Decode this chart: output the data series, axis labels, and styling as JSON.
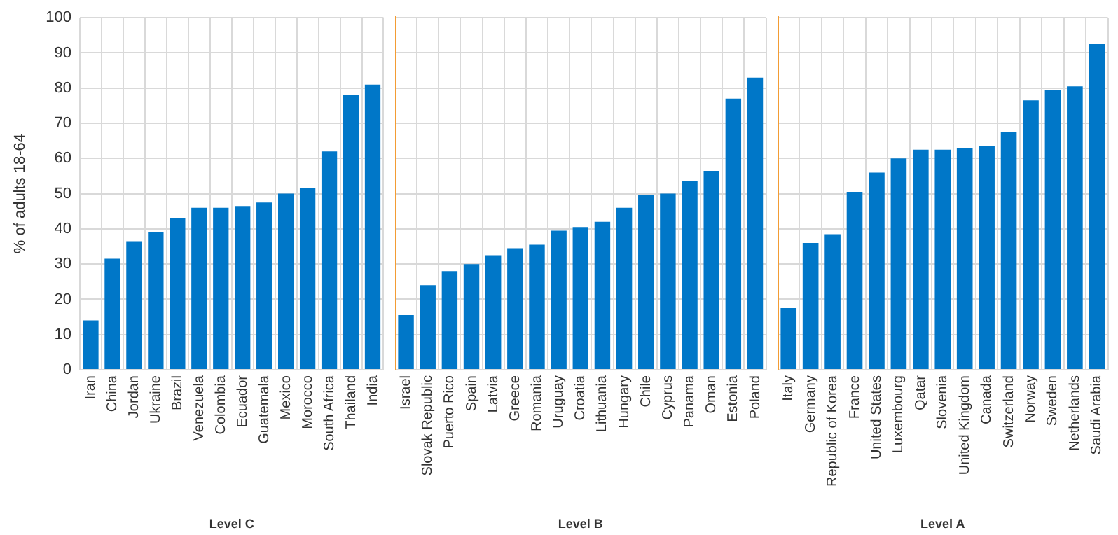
{
  "chart_data": [
    {
      "type": "bar",
      "xlabel": "Level C",
      "ylabel": "% of adults 18-64",
      "color": "#0077c8",
      "grid": true,
      "ylim": [
        0,
        100
      ],
      "yticks": [
        0,
        10,
        20,
        30,
        40,
        50,
        60,
        70,
        80,
        90,
        100
      ],
      "categories": [
        "Iran",
        "China",
        "Jordan",
        "Ukraine",
        "Brazil",
        "Venezuela",
        "Colombia",
        "Ecuador",
        "Guatemala",
        "Mexico",
        "Morocco",
        "South Africa",
        "Thailand",
        "India"
      ],
      "values": [
        14,
        31.5,
        36.5,
        39,
        43,
        46,
        46,
        46.5,
        47.5,
        50,
        51.5,
        62,
        78,
        81
      ]
    },
    {
      "type": "bar",
      "xlabel": "Level B",
      "color": "#0077c8",
      "grid": true,
      "ylim": [
        0,
        100
      ],
      "yticks": [
        0,
        10,
        20,
        30,
        40,
        50,
        60,
        70,
        80,
        90,
        100
      ],
      "tick_labels": "x",
      "categories": [
        "Israel",
        "Slovak Republic",
        "Puerto Rico",
        "Spain",
        "Latvia",
        "Greece",
        "Romania",
        "Uruguay",
        "Croatia",
        "Lithuania",
        "Hungary",
        "Chile",
        "Cyprus",
        "Panama",
        "Oman",
        "Estonia",
        "Poland"
      ],
      "values": [
        15.5,
        24,
        28,
        30,
        32.5,
        34.5,
        35.5,
        39.5,
        40.5,
        42,
        46,
        49.5,
        50,
        53.5,
        56.5,
        77,
        83
      ]
    },
    {
      "type": "bar",
      "xlabel": "Level A",
      "color": "#0077c8",
      "grid": true,
      "ylim": [
        0,
        100
      ],
      "yticks": [
        0,
        10,
        20,
        30,
        40,
        50,
        60,
        70,
        80,
        90,
        100
      ],
      "tick_labels": "x",
      "categories": [
        "Italy",
        "Germany",
        "Republic of Korea",
        "France",
        "United States",
        "Luxembourg",
        "Qatar",
        "Slovenia",
        "United Kingdom",
        "Canada",
        "Switzerland",
        "Norway",
        "Sweden",
        "Netherlands",
        "Saudi Arabia"
      ],
      "values": [
        17.5,
        36,
        38.5,
        50.5,
        56,
        60,
        62.5,
        62.5,
        63,
        63.5,
        67.5,
        76.5,
        79.5,
        80.5,
        92.5
      ]
    }
  ]
}
